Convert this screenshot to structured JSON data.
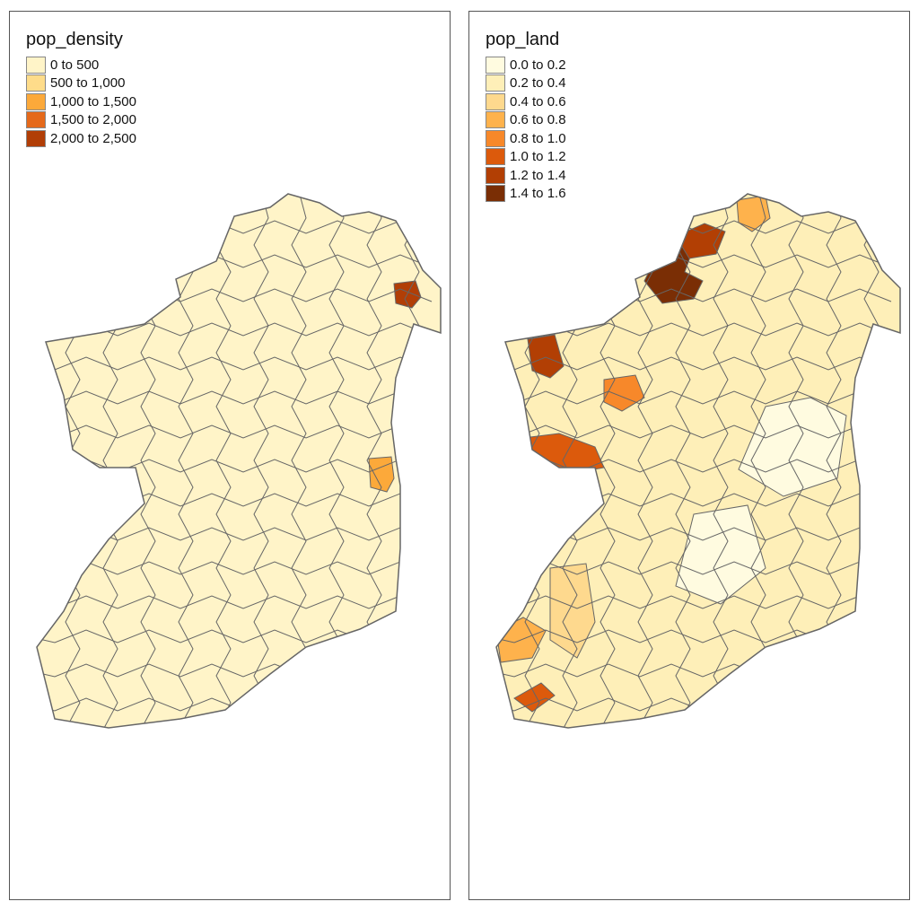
{
  "maps": [
    {
      "title": "pop_density",
      "legend": [
        {
          "label": "0 to 500",
          "color": "#FFF4C8"
        },
        {
          "label": "500 to 1,000",
          "color": "#FEDC8A"
        },
        {
          "label": "1,000 to 1,500",
          "color": "#FCA93A"
        },
        {
          "label": "1,500 to 2,000",
          "color": "#E5691A"
        },
        {
          "label": "2,000 to 2,500",
          "color": "#B13E06"
        }
      ],
      "base_color": "#FFF4C8",
      "highlights": [
        {
          "region": "belfast",
          "color": "#B13E06"
        },
        {
          "region": "dublin",
          "color": "#FCA93A"
        }
      ]
    },
    {
      "title": "pop_land",
      "legend": [
        {
          "label": "0.0 to 0.2",
          "color": "#FFFBE0"
        },
        {
          "label": "0.2 to 0.4",
          "color": "#FEEFB8"
        },
        {
          "label": "0.4 to 0.6",
          "color": "#FED98E"
        },
        {
          "label": "0.6 to 0.8",
          "color": "#FEB24C"
        },
        {
          "label": "0.8 to 1.0",
          "color": "#F7882A"
        },
        {
          "label": "1.0 to 1.2",
          "color": "#DC5A0C"
        },
        {
          "label": "1.2 to 1.4",
          "color": "#B23F04"
        },
        {
          "label": "1.4 to 1.6",
          "color": "#7A2E05"
        }
      ],
      "base_color": "#FEEFB8",
      "highlights": [
        {
          "region": "donegal-west",
          "color": "#7A2E05"
        },
        {
          "region": "donegal-north",
          "color": "#B23F04"
        },
        {
          "region": "inishowen",
          "color": "#FEB24C"
        },
        {
          "region": "mayo-northwest",
          "color": "#B23F04"
        },
        {
          "region": "galway-west",
          "color": "#DC5A0C"
        },
        {
          "region": "roscommon",
          "color": "#F7882A"
        },
        {
          "region": "kerry-south",
          "color": "#DC5A0C"
        },
        {
          "region": "kerry-west",
          "color": "#FEB24C"
        },
        {
          "region": "cork-west",
          "color": "#FED98E"
        },
        {
          "region": "midlands-east",
          "color": "#FFFBE0"
        },
        {
          "region": "south-midlands",
          "color": "#FFFBE0"
        }
      ]
    }
  ]
}
